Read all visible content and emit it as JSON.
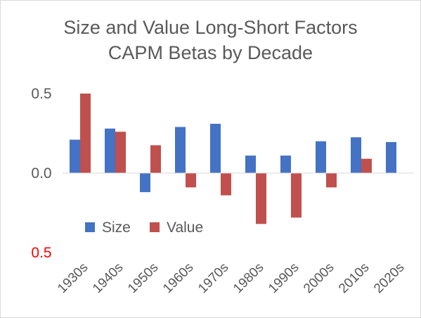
{
  "chart_data": {
    "type": "bar",
    "title": "Size and Value Long-Short Factors",
    "subtitle": "CAPM Betas by Decade",
    "categories": [
      "1930s",
      "1940s",
      "1950s",
      "1960s",
      "1970s",
      "1980s",
      "1990s",
      "2000s",
      "2010s",
      "2020s"
    ],
    "series": [
      {
        "name": "Size",
        "color": "#4472c4",
        "values": [
          0.21,
          0.28,
          -0.12,
          0.29,
          0.31,
          0.11,
          0.11,
          0.2,
          0.225,
          0.195
        ]
      },
      {
        "name": "Value",
        "color": "#c0504d",
        "values": [
          0.5,
          0.26,
          0.175,
          -0.09,
          -0.14,
          -0.32,
          -0.28,
          -0.09,
          0.09,
          null
        ]
      }
    ],
    "ylim": [
      -0.5,
      0.5
    ],
    "y_ticks": [
      {
        "value": 0.5,
        "label": "0.5"
      },
      {
        "value": 0.0,
        "label": "0.0"
      },
      {
        "value": -0.5,
        "label": "0.5"
      }
    ],
    "negative_tick_color": "#ff0000",
    "grid": false,
    "legend_position": "inside-lower-left",
    "xlabel": "",
    "ylabel": ""
  }
}
